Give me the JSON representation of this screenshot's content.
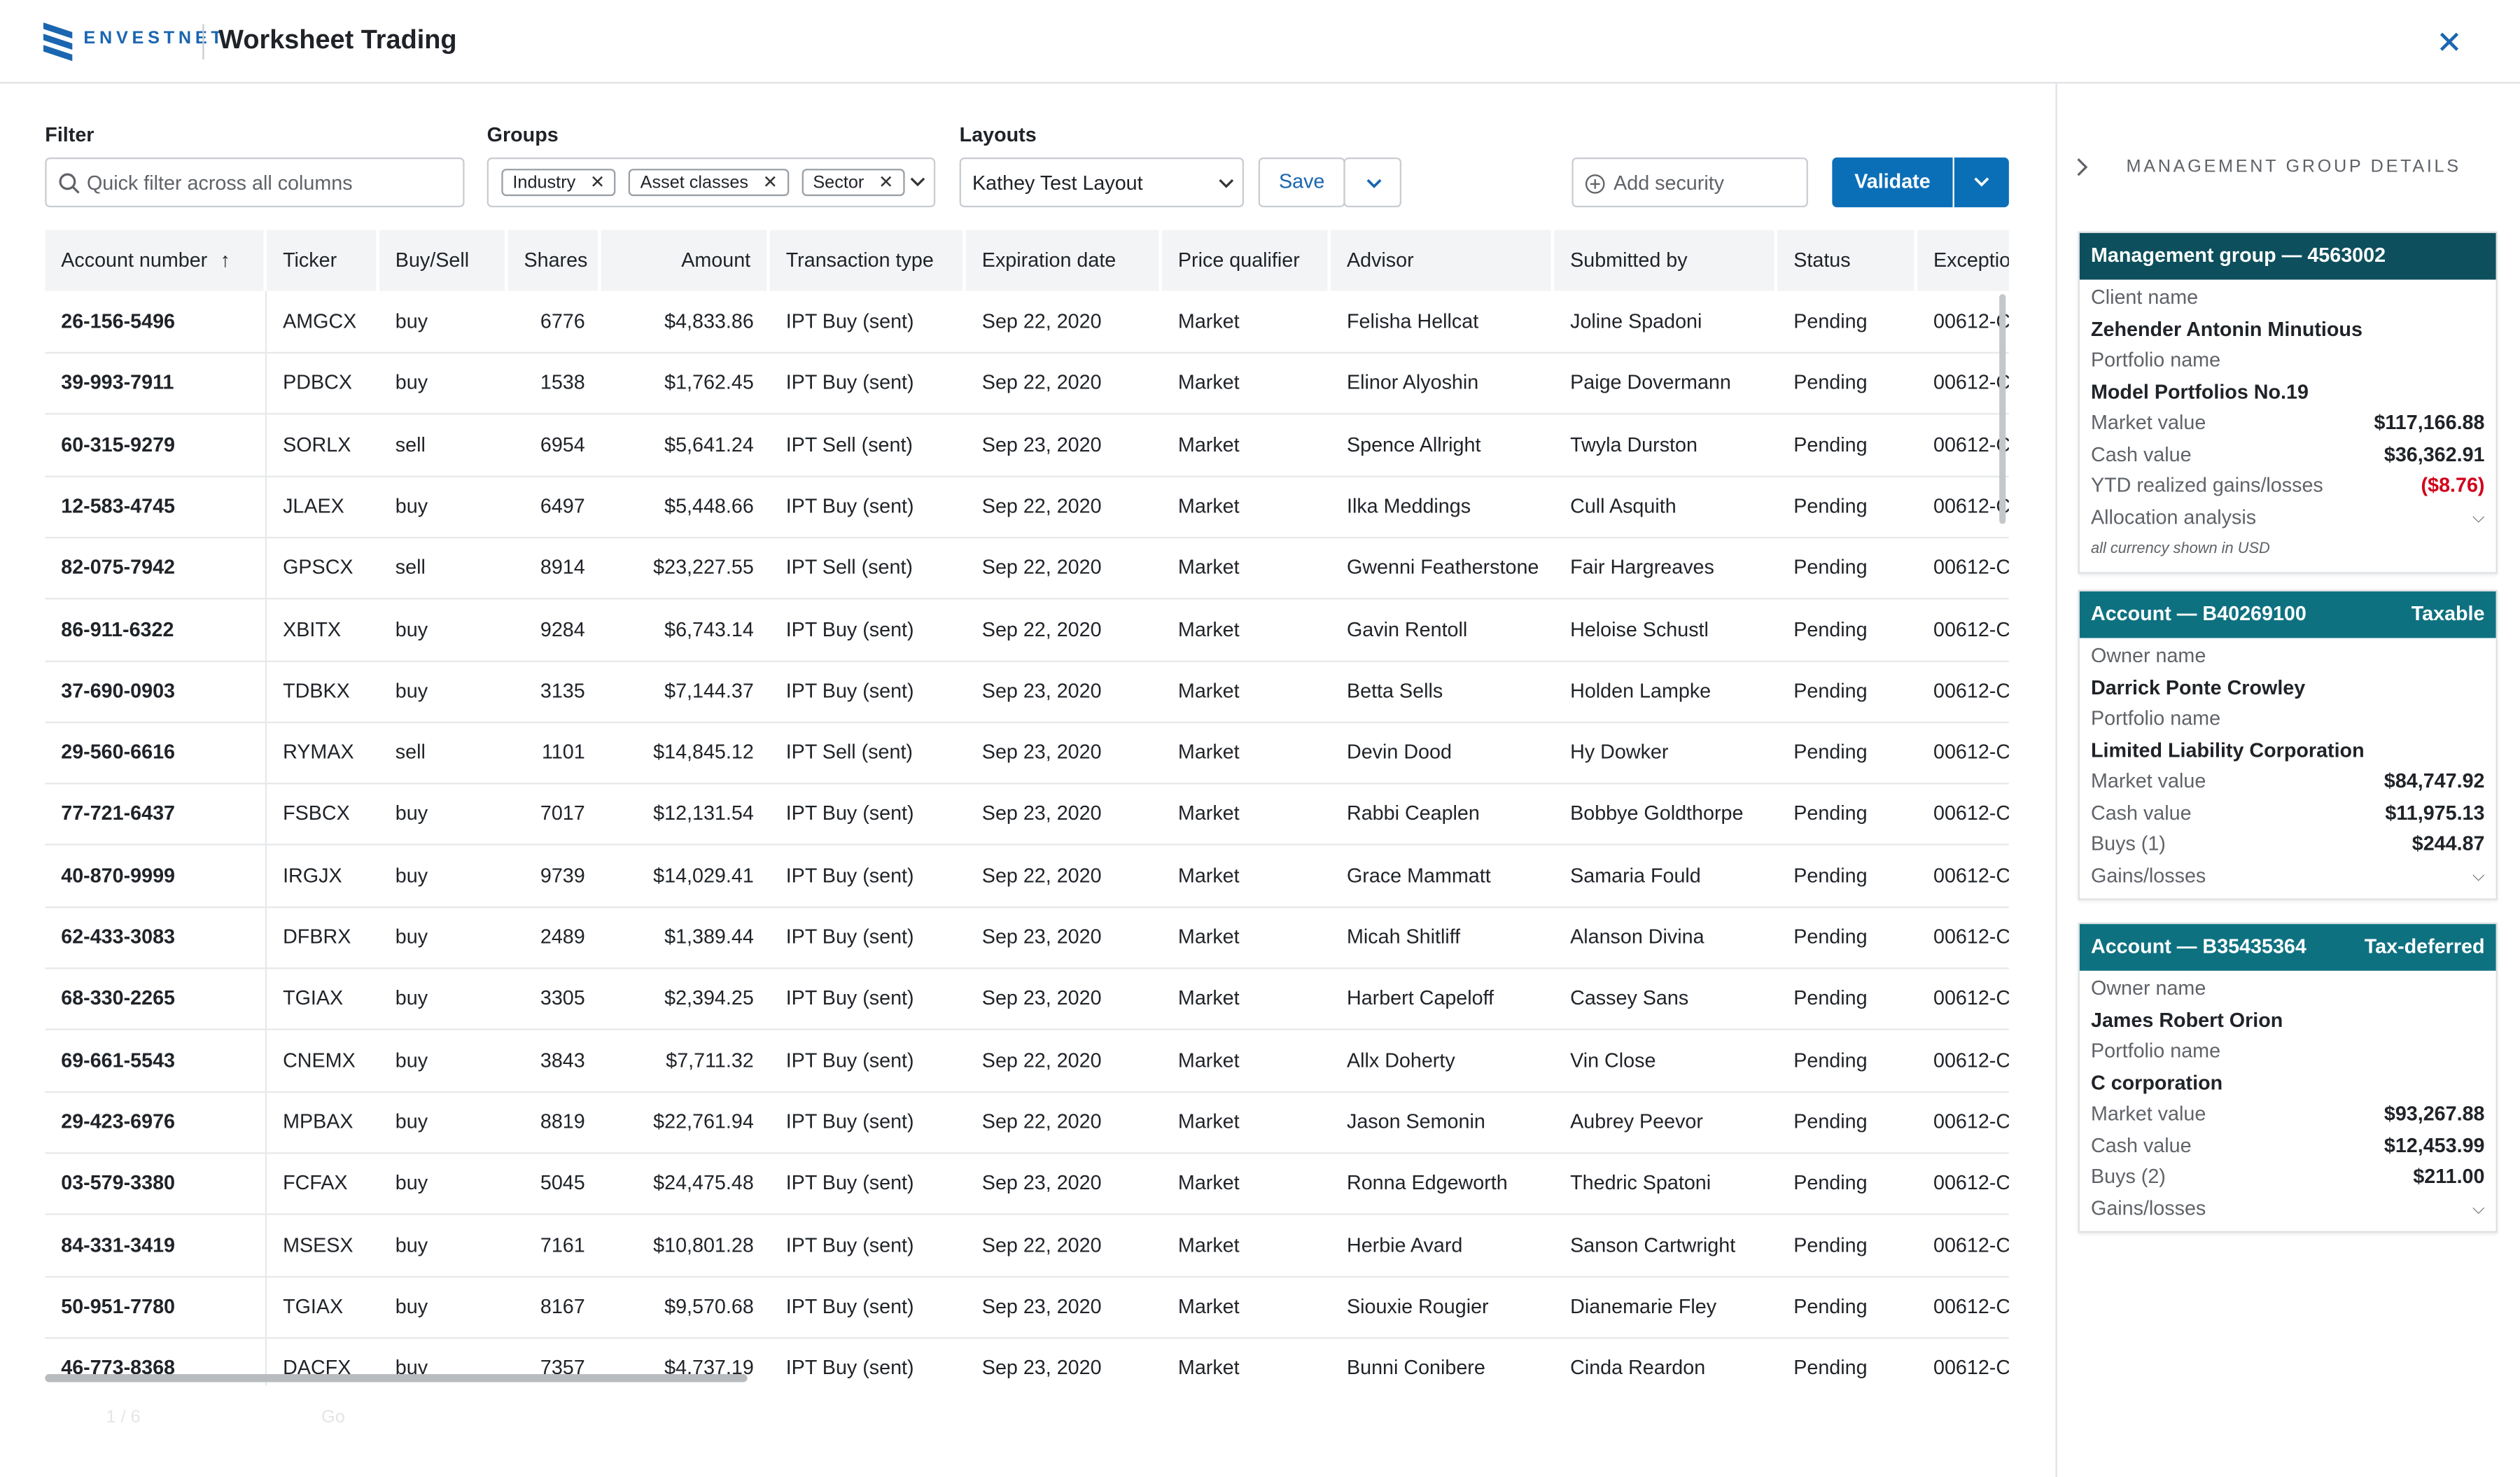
{
  "header": {
    "brand": "ENVESTNET",
    "title": "Worksheet Trading"
  },
  "toolbar": {
    "filter_label": "Filter",
    "filter_placeholder": "Quick filter across all columns",
    "groups_label": "Groups",
    "groups": [
      "Industry",
      "Asset classes",
      "Sector"
    ],
    "layouts_label": "Layouts",
    "layout": "Kathey Test Layout",
    "save": "Save",
    "add_security": "Add security",
    "validate": "Validate"
  },
  "table": {
    "columns": [
      "Account number",
      "Ticker",
      "Buy/Sell",
      "Shares",
      "Amount",
      "Transaction type",
      "Expiration date",
      "Price qualifier",
      "Advisor",
      "Submitted by",
      "Status",
      "Exceptio"
    ],
    "rows": [
      [
        "26-156-5496",
        "AMGCX",
        "buy",
        "6776",
        "$4,833.86",
        "IPT Buy (sent)",
        "Sep 22, 2020",
        "Market",
        "Felisha Hellcat",
        "Joline Spadoni",
        "Pending",
        "00612-C"
      ],
      [
        "39-993-7911",
        "PDBCX",
        "buy",
        "1538",
        "$1,762.45",
        "IPT Buy (sent)",
        "Sep 22, 2020",
        "Market",
        "Elinor Alyoshin",
        "Paige Dovermann",
        "Pending",
        "00612-C"
      ],
      [
        "60-315-9279",
        "SORLX",
        "sell",
        "6954",
        "$5,641.24",
        "IPT Sell (sent)",
        "Sep 23, 2020",
        "Market",
        "Spence Allright",
        "Twyla Durston",
        "Pending",
        "00612-C"
      ],
      [
        "12-583-4745",
        "JLAEX",
        "buy",
        "6497",
        "$5,448.66",
        "IPT Buy (sent)",
        "Sep 22, 2020",
        "Market",
        "Ilka Meddings",
        "Cull Asquith",
        "Pending",
        "00612-C"
      ],
      [
        "82-075-7942",
        "GPSCX",
        "sell",
        "8914",
        "$23,227.55",
        "IPT Sell (sent)",
        "Sep 22, 2020",
        "Market",
        "Gwenni Featherstone",
        "Fair Hargreaves",
        "Pending",
        "00612-C"
      ],
      [
        "86-911-6322",
        "XBITX",
        "buy",
        "9284",
        "$6,743.14",
        "IPT Buy (sent)",
        "Sep 22, 2020",
        "Market",
        "Gavin Rentoll",
        "Heloise Schustl",
        "Pending",
        "00612-C"
      ],
      [
        "37-690-0903",
        "TDBKX",
        "buy",
        "3135",
        "$7,144.37",
        "IPT Buy (sent)",
        "Sep 23, 2020",
        "Market",
        "Betta Sells",
        "Holden Lampke",
        "Pending",
        "00612-C"
      ],
      [
        "29-560-6616",
        "RYMAX",
        "sell",
        "1101",
        "$14,845.12",
        "IPT Sell (sent)",
        "Sep 23, 2020",
        "Market",
        "Devin Dood",
        "Hy Dowker",
        "Pending",
        "00612-C"
      ],
      [
        "77-721-6437",
        "FSBCX",
        "buy",
        "7017",
        "$12,131.54",
        "IPT Buy (sent)",
        "Sep 23, 2020",
        "Market",
        "Rabbi Ceaplen",
        "Bobbye Goldthorpe",
        "Pending",
        "00612-C"
      ],
      [
        "40-870-9999",
        "IRGJX",
        "buy",
        "9739",
        "$14,029.41",
        "IPT Buy (sent)",
        "Sep 22, 2020",
        "Market",
        "Grace Mammatt",
        "Samaria Fould",
        "Pending",
        "00612-C"
      ],
      [
        "62-433-3083",
        "DFBRX",
        "buy",
        "2489",
        "$1,389.44",
        "IPT Buy (sent)",
        "Sep 23, 2020",
        "Market",
        "Micah Shitliff",
        "Alanson Divina",
        "Pending",
        "00612-C"
      ],
      [
        "68-330-2265",
        "TGIAX",
        "buy",
        "3305",
        "$2,394.25",
        "IPT Buy (sent)",
        "Sep 23, 2020",
        "Market",
        "Harbert Capeloff",
        "Cassey Sans",
        "Pending",
        "00612-C"
      ],
      [
        "69-661-5543",
        "CNEMX",
        "buy",
        "3843",
        "$7,711.32",
        "IPT Buy (sent)",
        "Sep 22, 2020",
        "Market",
        "Allx Doherty",
        "Vin Close",
        "Pending",
        "00612-C"
      ],
      [
        "29-423-6976",
        "MPBAX",
        "buy",
        "8819",
        "$22,761.94",
        "IPT Buy (sent)",
        "Sep 22, 2020",
        "Market",
        "Jason Semonin",
        "Aubrey Peevor",
        "Pending",
        "00612-C"
      ],
      [
        "03-579-3380",
        "FCFAX",
        "buy",
        "5045",
        "$24,475.48",
        "IPT Buy (sent)",
        "Sep 23, 2020",
        "Market",
        "Ronna Edgeworth",
        "Thedric Spatoni",
        "Pending",
        "00612-C"
      ],
      [
        "84-331-3419",
        "MSESX",
        "buy",
        "7161",
        "$10,801.28",
        "IPT Buy (sent)",
        "Sep 22, 2020",
        "Market",
        "Herbie Avard",
        "Sanson Cartwright",
        "Pending",
        "00612-C"
      ],
      [
        "50-951-7780",
        "TGIAX",
        "buy",
        "8167",
        "$9,570.68",
        "IPT Buy (sent)",
        "Sep 23, 2020",
        "Market",
        "Siouxie Rougier",
        "Dianemarie Fley",
        "Pending",
        "00612-C"
      ],
      [
        "46-773-8368",
        "DACFX",
        "buy",
        "7357",
        "$4,737.19",
        "IPT Buy (sent)",
        "Sep 23, 2020",
        "Market",
        "Bunni Conibere",
        "Cinda Reardon",
        "Pending",
        "00612-C"
      ]
    ]
  },
  "pagination": {
    "page": "1 / 6",
    "go": "Go"
  },
  "panel": {
    "title": "MANAGEMENT GROUP DETAILS",
    "cards": [
      {
        "title": "Management group — 4563002",
        "fields": [
          {
            "label": "Client name",
            "value": "Zehender Antonin Minutious"
          },
          {
            "label": "Portfolio name",
            "value": "Model Portfolios No.19"
          }
        ],
        "rows": [
          {
            "label": "Market value",
            "value": "$117,166.88"
          },
          {
            "label": "Cash value",
            "value": "$36,362.91"
          },
          {
            "label": "YTD realized gains/losses",
            "value": "($8.76)",
            "negative": true
          }
        ],
        "expand": "Allocation analysis",
        "note": "all currency shown in USD"
      },
      {
        "title": "Account — B40269100",
        "tag": "Taxable",
        "fields": [
          {
            "label": "Owner name",
            "value": "Darrick Ponte Crowley"
          },
          {
            "label": "Portfolio name",
            "value": "Limited Liability Corporation"
          }
        ],
        "rows": [
          {
            "label": "Market value",
            "value": "$84,747.92"
          },
          {
            "label": "Cash value",
            "value": "$11,975.13"
          },
          {
            "label": "Buys (1)",
            "value": "$244.87"
          }
        ],
        "expand": "Gains/losses"
      },
      {
        "title": "Account — B35435364",
        "tag": "Tax-deferred",
        "fields": [
          {
            "label": "Owner name",
            "value": "James Robert Orion"
          },
          {
            "label": "Portfolio name",
            "value": "C corporation"
          }
        ],
        "rows": [
          {
            "label": "Market value",
            "value": "$93,267.88"
          },
          {
            "label": "Cash value",
            "value": "$12,453.99"
          },
          {
            "label": "Buys (2)",
            "value": "$211.00"
          }
        ],
        "expand": "Gains/losses"
      }
    ]
  }
}
